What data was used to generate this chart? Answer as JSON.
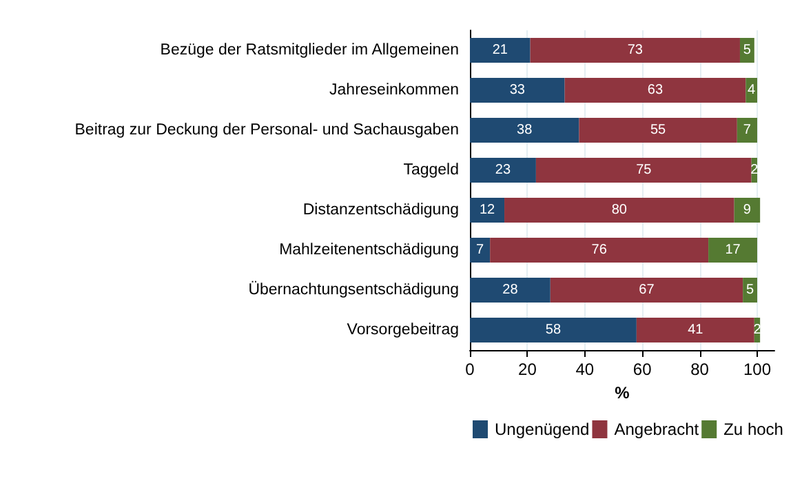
{
  "chart_data": {
    "type": "bar",
    "orientation": "horizontal",
    "stacked": true,
    "xlabel": "%",
    "categories": [
      "Bezüge der Ratsmitglieder im Allgemeinen",
      "Jahreseinkommen",
      "Beitrag zur Deckung der Personal- und Sachausgaben",
      "Taggeld",
      "Distanzentschädigung",
      "Mahlzeitenentschädigung",
      "Übernachtungsentschädigung",
      "Vorsorgebeitrag"
    ],
    "series": [
      {
        "name": "Ungenügend",
        "color": "#1f4a72",
        "values": [
          21,
          33,
          38,
          23,
          12,
          7,
          28,
          58
        ]
      },
      {
        "name": "Angebracht",
        "color": "#8f353f",
        "values": [
          73,
          63,
          55,
          75,
          80,
          76,
          67,
          41
        ]
      },
      {
        "name": "Zu hoch",
        "color": "#557a32",
        "values": [
          5,
          4,
          7,
          2,
          9,
          17,
          5,
          2
        ]
      }
    ],
    "xlim": [
      0,
      106
    ],
    "xticks": [
      0,
      20,
      40,
      60,
      80,
      100
    ],
    "grid": "x",
    "legend": "bottom",
    "data_labels": true
  }
}
